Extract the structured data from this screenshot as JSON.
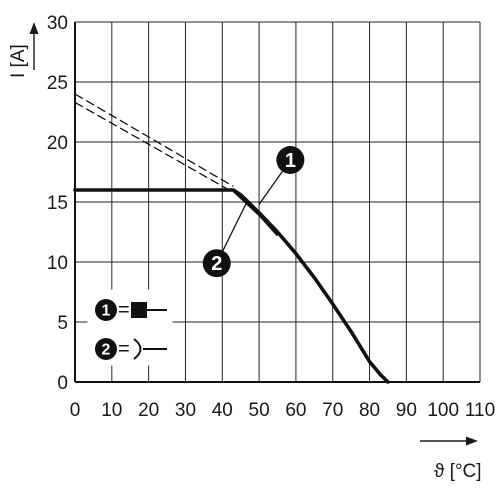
{
  "chart_data": {
    "type": "line",
    "xlabel": "ϑ [°C]",
    "ylabel": "I [A]",
    "xlim": [
      0,
      110
    ],
    "ylim": [
      0,
      30
    ],
    "x_ticks": [
      "0",
      "10",
      "20",
      "30",
      "40",
      "50",
      "60",
      "70",
      "80",
      "90",
      "100",
      "110"
    ],
    "y_ticks": [
      "0",
      "5",
      "10",
      "15",
      "20",
      "25",
      "30"
    ],
    "grid": true,
    "series": [
      {
        "style": "solid-thick",
        "x": [
          0,
          43,
          45,
          50,
          55,
          60,
          65,
          70,
          75,
          80,
          83,
          85
        ],
        "y": [
          16,
          16,
          15.6,
          14.1,
          12.5,
          10.7,
          8.7,
          6.5,
          4.2,
          1.7,
          0.6,
          0
        ]
      },
      {
        "style": "dashed",
        "x": [
          0,
          43
        ],
        "y": [
          24.0,
          16.3
        ]
      },
      {
        "style": "dashed",
        "x": [
          0,
          43
        ],
        "y": [
          23.3,
          15.8
        ]
      }
    ],
    "markers": [
      {
        "label": "1",
        "x": 58.5,
        "y": 18.5
      },
      {
        "label": "2",
        "x": 38.5,
        "y": 9.9
      }
    ],
    "legend": {
      "placement": "bottom-left",
      "items": [
        {
          "marker": "1",
          "symbol": "=",
          "icon": "filled-square-with-lead"
        },
        {
          "marker": "2",
          "symbol": "=",
          "icon": "open-arc-with-lead"
        }
      ]
    }
  }
}
